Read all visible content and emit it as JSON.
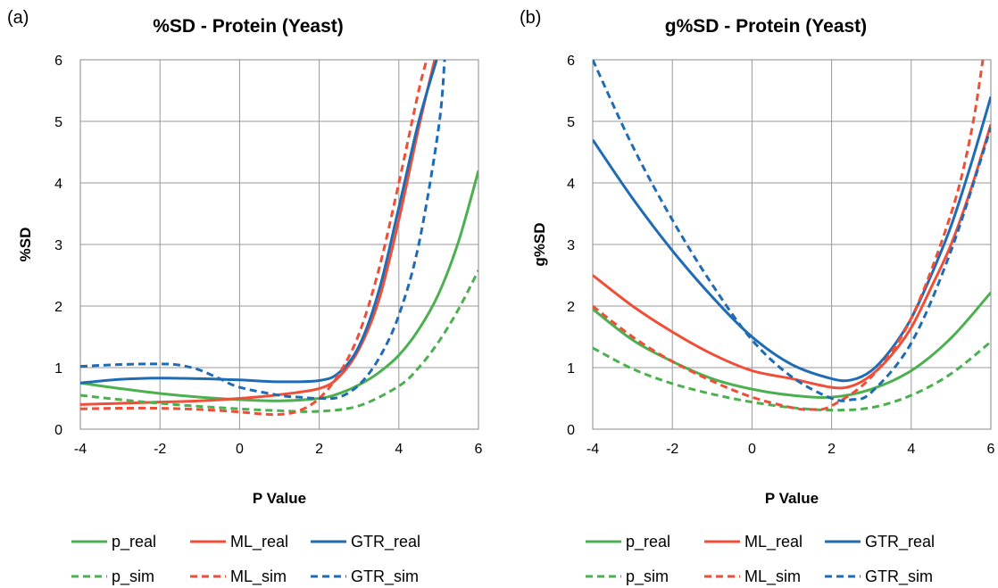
{
  "chart_data": [
    {
      "type": "line",
      "panel_label": "(a)",
      "title": "%SD  - Protein (Yeast)",
      "xlabel": "P  Value",
      "ylabel": "%SD",
      "xlim": [
        -4,
        6
      ],
      "ylim": [
        0,
        6
      ],
      "x_ticks": [
        "-4",
        "-2",
        "0",
        "2",
        "4",
        "6"
      ],
      "y_ticks": [
        "0",
        "1",
        "2",
        "3",
        "4",
        "5",
        "6"
      ],
      "grid": true,
      "legend_position": "bottom",
      "series": [
        {
          "name": "p_real",
          "color": "#4CB050",
          "dashed": false,
          "x": [
            -4,
            -3,
            -2,
            -1,
            0,
            1,
            2,
            2.5,
            3,
            3.5,
            4,
            4.5,
            5,
            5.5,
            6
          ],
          "y": [
            0.75,
            0.66,
            0.58,
            0.52,
            0.48,
            0.46,
            0.5,
            0.58,
            0.72,
            0.92,
            1.2,
            1.62,
            2.2,
            3.05,
            4.2
          ]
        },
        {
          "name": "ML_real",
          "color": "#F04E37",
          "dashed": false,
          "x": [
            -4,
            -3,
            -2,
            -1,
            0,
            1,
            2,
            2.5,
            3,
            3.5,
            4,
            4.5,
            4.9
          ],
          "y": [
            0.4,
            0.42,
            0.44,
            0.46,
            0.5,
            0.56,
            0.66,
            0.85,
            1.3,
            2.1,
            3.4,
            4.9,
            6.0
          ]
        },
        {
          "name": "GTR_real",
          "color": "#1F6BB4",
          "dashed": false,
          "x": [
            -4,
            -3,
            -2,
            -1,
            0,
            1,
            2,
            2.5,
            3,
            3.5,
            4,
            4.5,
            4.95
          ],
          "y": [
            0.75,
            0.81,
            0.83,
            0.82,
            0.8,
            0.77,
            0.79,
            0.92,
            1.35,
            2.25,
            3.6,
            5.0,
            6.0
          ]
        },
        {
          "name": "p_sim",
          "color": "#4CB050",
          "dashed": true,
          "x": [
            -4,
            -3,
            -2,
            -1,
            0,
            1,
            2,
            3,
            4,
            4.5,
            5,
            5.5,
            6
          ],
          "y": [
            0.55,
            0.48,
            0.42,
            0.37,
            0.33,
            0.3,
            0.29,
            0.38,
            0.7,
            1.0,
            1.42,
            1.95,
            2.58
          ]
        },
        {
          "name": "ML_sim",
          "color": "#F04E37",
          "dashed": true,
          "x": [
            -4,
            -3,
            -2,
            -1,
            0,
            0.5,
            1,
            1.5,
            2,
            2.5,
            3,
            3.5,
            4,
            4.5,
            4.7
          ],
          "y": [
            0.33,
            0.34,
            0.34,
            0.32,
            0.28,
            0.25,
            0.24,
            0.3,
            0.5,
            0.9,
            1.55,
            2.6,
            4.0,
            5.5,
            6.0
          ]
        },
        {
          "name": "GTR_sim",
          "color": "#1F6BB4",
          "dashed": true,
          "x": [
            -4,
            -3,
            -2,
            -1.5,
            -1,
            -0.5,
            0,
            1,
            1.5,
            2,
            2.5,
            3,
            3.5,
            4,
            4.5,
            5,
            5.15
          ],
          "y": [
            1.02,
            1.05,
            1.06,
            1.04,
            0.96,
            0.82,
            0.68,
            0.55,
            0.52,
            0.5,
            0.52,
            0.72,
            1.15,
            1.85,
            3.0,
            4.9,
            6.0
          ]
        }
      ]
    },
    {
      "type": "line",
      "panel_label": "(b)",
      "title": "g%SD  - Protein (Yeast)",
      "xlabel": "P Value",
      "ylabel": "g%SD",
      "xlim": [
        -4,
        6
      ],
      "ylim": [
        0,
        6
      ],
      "x_ticks": [
        "-4",
        "-2",
        "0",
        "2",
        "4",
        "6"
      ],
      "y_ticks": [
        "0",
        "1",
        "2",
        "3",
        "4",
        "5",
        "6"
      ],
      "grid": true,
      "legend_position": "bottom",
      "series": [
        {
          "name": "p_real",
          "color": "#4CB050",
          "dashed": false,
          "x": [
            -4,
            -3,
            -2,
            -1,
            0,
            1,
            2,
            3,
            4,
            5,
            6
          ],
          "y": [
            1.95,
            1.45,
            1.1,
            0.82,
            0.65,
            0.55,
            0.52,
            0.65,
            0.95,
            1.48,
            2.22
          ]
        },
        {
          "name": "ML_real",
          "color": "#F04E37",
          "dashed": false,
          "x": [
            -4,
            -3,
            -2,
            -1,
            0,
            1,
            2,
            2.5,
            3,
            3.5,
            4,
            4.5,
            5,
            5.5,
            6
          ],
          "y": [
            2.5,
            2.0,
            1.58,
            1.22,
            0.95,
            0.82,
            0.68,
            0.7,
            0.88,
            1.2,
            1.65,
            2.3,
            3.0,
            3.9,
            4.95
          ]
        },
        {
          "name": "GTR_real",
          "color": "#1F6BB4",
          "dashed": false,
          "x": [
            -4,
            -3,
            -2,
            -1,
            0,
            1,
            2,
            2.5,
            3,
            3.5,
            4,
            4.5,
            5,
            5.5,
            6
          ],
          "y": [
            4.7,
            3.75,
            2.9,
            2.15,
            1.5,
            1.05,
            0.82,
            0.8,
            0.95,
            1.3,
            1.8,
            2.5,
            3.3,
            4.3,
            5.4
          ]
        },
        {
          "name": "p_sim",
          "color": "#4CB050",
          "dashed": true,
          "x": [
            -4,
            -3,
            -2,
            -1,
            0,
            1,
            2,
            3,
            4,
            5,
            6
          ],
          "y": [
            1.32,
            0.98,
            0.74,
            0.57,
            0.44,
            0.35,
            0.31,
            0.35,
            0.55,
            0.9,
            1.42
          ]
        },
        {
          "name": "ML_sim",
          "color": "#F04E37",
          "dashed": true,
          "x": [
            -4,
            -3,
            -2,
            -1,
            0,
            1,
            1.5,
            2,
            3,
            4,
            5,
            5.5,
            5.8
          ],
          "y": [
            2.0,
            1.5,
            1.1,
            0.78,
            0.52,
            0.35,
            0.32,
            0.38,
            0.85,
            1.8,
            3.5,
            4.8,
            6.0
          ]
        },
        {
          "name": "GTR_sim",
          "color": "#1F6BB4",
          "dashed": true,
          "x": [
            -4,
            -3,
            -2,
            -1,
            0,
            1,
            2,
            2.5,
            3,
            4,
            5,
            6
          ],
          "y": [
            6.0,
            4.6,
            3.4,
            2.35,
            1.45,
            0.85,
            0.5,
            0.48,
            0.6,
            1.4,
            2.9,
            4.9
          ]
        }
      ]
    }
  ]
}
